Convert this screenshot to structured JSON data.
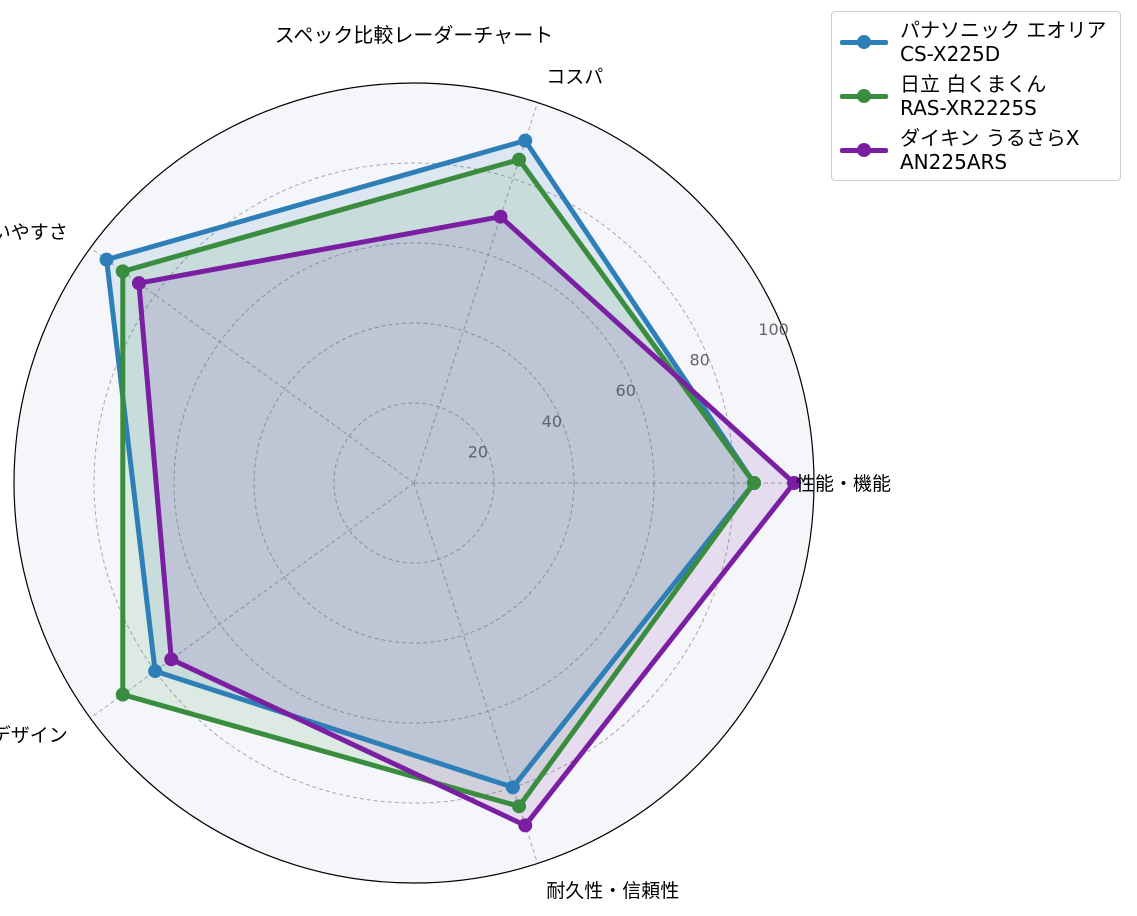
{
  "chart_data": {
    "type": "radar",
    "title": "スペック比較レーダーチャート",
    "categories": [
      "性能・機能",
      "コスパ",
      "使いやすさ",
      "デザイン",
      "耐久性・信頼性"
    ],
    "rticks": [
      20,
      40,
      60,
      80,
      100
    ],
    "rlim": [
      0,
      100
    ],
    "grid": true,
    "legend_position": "top-right",
    "series": [
      {
        "name": "パナソニック エオリア\nCS-X225D",
        "color": "#2e7fb8",
        "values": [
          85,
          90,
          95,
          80,
          80
        ]
      },
      {
        "name": "日立 白くまくん\nRAS-XR2225S",
        "color": "#3a8c3f",
        "values": [
          85,
          85,
          90,
          90,
          85
        ]
      },
      {
        "name": "ダイキン うるさらX\nAN225ARS",
        "color": "#7b1fa2",
        "values": [
          95,
          70,
          85,
          75,
          90
        ]
      }
    ]
  }
}
